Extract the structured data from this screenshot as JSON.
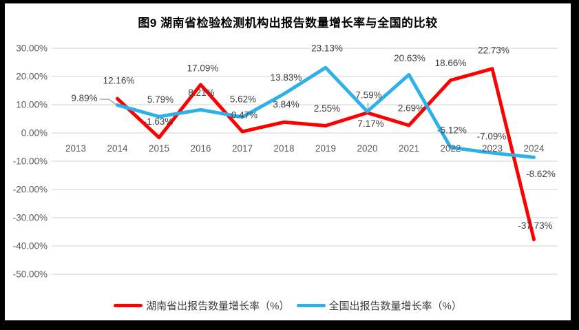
{
  "colors": {
    "hunan_series": "#FF0000",
    "national_series": "#2EB1E8",
    "gridline": "#D9D9D9",
    "axis_text": "#595959",
    "data_label_text": "#404040",
    "leader_line": "#A6A6A6",
    "title_text": "#000000",
    "frame": "#000000",
    "background": "#FFFFFF"
  },
  "chart_data": {
    "type": "line",
    "title": "图9 湖南省检验检测机构出报告数量增长率与全国的比较",
    "categories": [
      "2013",
      "2014",
      "2015",
      "2016",
      "2017",
      "2018",
      "2019",
      "2020",
      "2021",
      "2022",
      "2023",
      "2024"
    ],
    "y_axis": {
      "ticks": [
        "30.00%",
        "20.00%",
        "10.00%",
        "0.00%",
        "-10.00%",
        "-20.00%",
        "-30.00%",
        "-40.00%",
        "-50.00%"
      ],
      "tick_values": [
        30,
        20,
        10,
        0,
        -10,
        -20,
        -30,
        -40,
        -50
      ],
      "ylim": [
        -50,
        30
      ],
      "grid": true
    },
    "legend_position": "bottom",
    "series": [
      {
        "name": "湖南省出报告数量增长率（%）",
        "color": "#FF0000",
        "values": [
          null,
          12.16,
          -1.63,
          17.09,
          0.47,
          3.84,
          2.55,
          7.17,
          2.69,
          18.66,
          22.73,
          -37.73
        ],
        "labels": [
          null,
          "12.16%",
          "-1.63%",
          "17.09%",
          "0.47%",
          "3.84%",
          "2.55%",
          "7.17%",
          "2.69%",
          "18.66%",
          "22.73%",
          "-37.73%"
        ]
      },
      {
        "name": "全国出报告数量增长率（%）",
        "color": "#2EB1E8",
        "values": [
          null,
          9.89,
          5.79,
          8.21,
          5.62,
          13.83,
          23.13,
          7.59,
          20.63,
          -5.12,
          -7.09,
          -8.62
        ],
        "labels": [
          null,
          "9.89%",
          "5.79%",
          "8.21%",
          "5.62%",
          "13.83%",
          "23.13%",
          "7.59%",
          "20.63%",
          "-5.12%",
          "-7.09%",
          "-8.62%"
        ]
      }
    ]
  }
}
